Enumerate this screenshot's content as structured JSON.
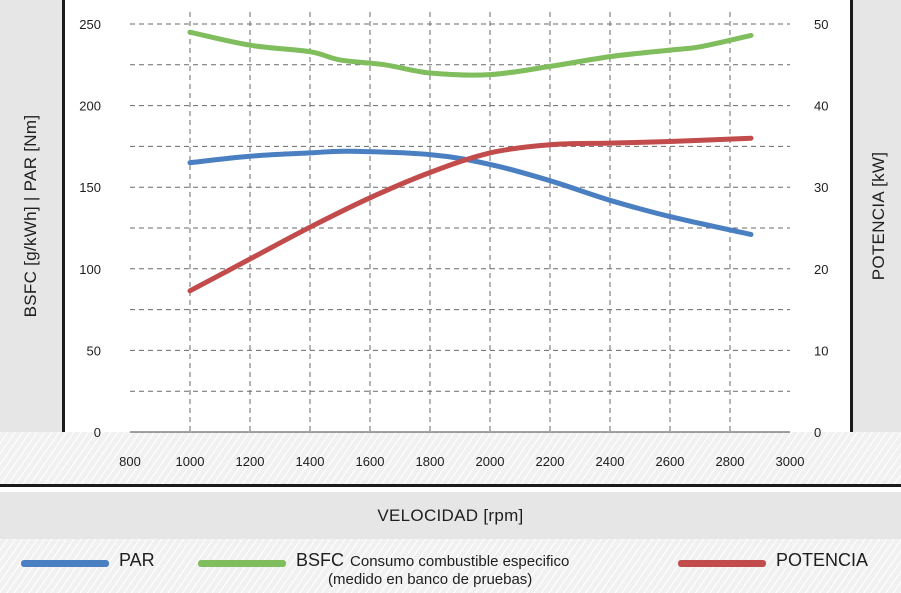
{
  "chart_data": {
    "type": "line",
    "xlabel": "VELOCIDAD  [rpm]",
    "ylabel_left": "BSFC  [g/kWh]  |   PAR  [Nm]",
    "ylabel_right": "POTENCIA  [kW]",
    "xlim": [
      800,
      3000
    ],
    "ylim_left": [
      0,
      250
    ],
    "ylim_right": [
      0,
      50
    ],
    "x_ticks": [
      800,
      1000,
      1200,
      1400,
      1600,
      1800,
      2000,
      2200,
      2400,
      2600,
      2800,
      3000
    ],
    "y_left_ticks": [
      0,
      50,
      100,
      150,
      200,
      250
    ],
    "y_right_ticks": [
      0,
      10,
      20,
      30,
      40,
      50
    ],
    "grid": true,
    "legend_position": "bottom",
    "series": [
      {
        "name": "PAR",
        "axis": "left",
        "color": "#4a7fc1",
        "x": [
          1000,
          1200,
          1400,
          1530,
          1800,
          2000,
          2200,
          2400,
          2600,
          2870
        ],
        "values": [
          165,
          169,
          171,
          172,
          170,
          164,
          154,
          142,
          132,
          121
        ]
      },
      {
        "name": "BSFC",
        "axis": "left",
        "color": "#7fbd5d",
        "x": [
          1000,
          1200,
          1400,
          1500,
          1650,
          1800,
          2000,
          2200,
          2400,
          2600,
          2700,
          2870
        ],
        "values": [
          245,
          237,
          233,
          228,
          225,
          220,
          219,
          224,
          230,
          234,
          236,
          243
        ]
      },
      {
        "name": "POTENCIA",
        "axis": "right",
        "color": "#c24c4b",
        "x": [
          1000,
          1200,
          1400,
          1600,
          1800,
          2000,
          2200,
          2400,
          2600,
          2870
        ],
        "values": [
          17.3,
          21.2,
          25.1,
          28.7,
          31.8,
          34.2,
          35.2,
          35.4,
          35.6,
          36.0
        ]
      }
    ]
  },
  "legend": {
    "par_label": "PAR",
    "bsfc_label": "BSFC",
    "bsfc_desc": "Consumo combustible especifico",
    "bsfc_note": "(medido en banco de pruebas)",
    "potencia_label": "POTENCIA"
  }
}
